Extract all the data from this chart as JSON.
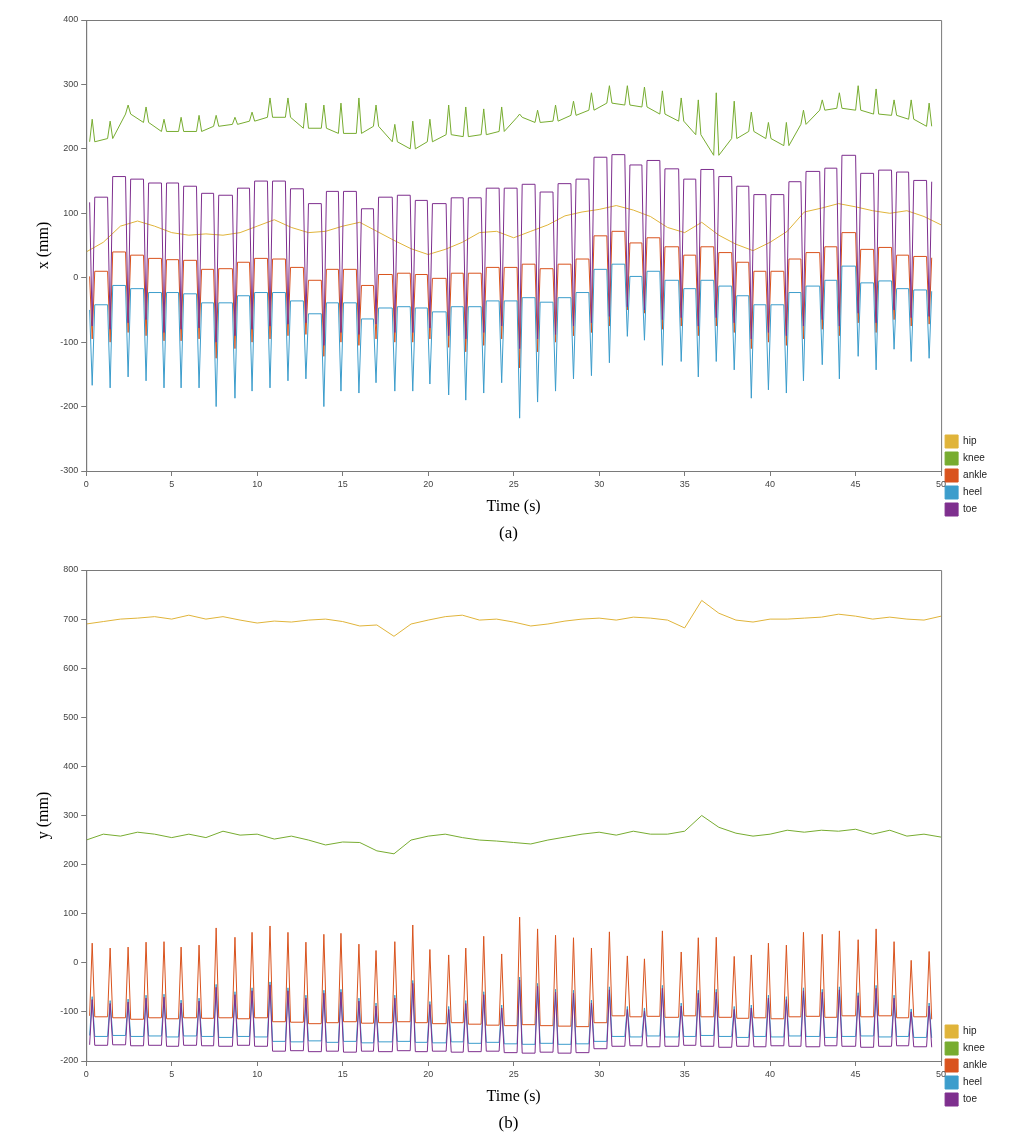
{
  "chart_data": [
    {
      "type": "line",
      "xlabel": "Time (s)",
      "ylabel": "x (mm)",
      "xlim": [
        0,
        50
      ],
      "xticks": [
        0,
        5,
        10,
        15,
        20,
        25,
        30,
        35,
        40,
        45,
        50
      ],
      "ylim": [
        -300,
        400
      ],
      "yticks": [
        -300,
        -200,
        -100,
        0,
        100,
        200,
        300,
        400
      ],
      "grid": false,
      "legend": "bottom right",
      "annotations": [
        "(a)"
      ],
      "x": [
        0.2,
        0.35,
        0.5,
        1.25,
        1.4,
        1.55,
        2.3,
        2.45,
        2.6,
        3.35,
        3.5,
        3.65,
        4.4,
        4.55,
        4.7,
        5.4,
        5.55,
        5.7,
        6.45,
        6.6,
        6.75,
        7.45,
        7.6,
        7.75,
        8.55,
        8.7,
        8.85,
        9.55,
        9.7,
        9.85,
        10.6,
        10.75,
        10.9,
        11.65,
        11.8,
        11.95,
        12.7,
        12.85,
        13,
        13.75,
        13.9,
        14.05,
        14.75,
        14.9,
        15.05,
        15.8,
        15.95,
        16.1,
        16.8,
        16.95,
        17.1,
        17.9,
        18.05,
        18.2,
        18.95,
        19.1,
        19.25,
        19.95,
        20.1,
        20.25,
        21.05,
        21.2,
        21.35,
        22.05,
        22.2,
        22.35,
        23.1,
        23.25,
        23.4,
        24.15,
        24.3,
        24.45,
        25.2,
        25.35,
        25.5,
        26.25,
        26.4,
        26.55,
        27.3,
        27.45,
        27.6,
        28.35,
        28.5,
        28.65,
        29.4,
        29.55,
        29.7,
        30.45,
        30.6,
        30.75,
        31.5,
        31.65,
        31.8,
        32.5,
        32.65,
        32.8,
        33.55,
        33.7,
        33.85,
        34.65,
        34.8,
        34.95,
        35.65,
        35.8,
        35.95,
        36.7,
        36.85,
        37,
        37.75,
        37.9,
        38.05,
        38.75,
        38.9,
        39.05,
        39.75,
        39.9,
        40.05,
        40.8,
        40.95,
        41.1,
        41.8,
        41.95,
        42.1,
        42.9,
        43.05,
        43.2,
        43.9,
        44.05,
        44.2,
        45,
        45.15,
        45.3,
        46.05,
        46.2,
        46.35,
        47.1,
        47.25,
        47.4,
        48.1,
        48.25,
        48.4,
        49.15,
        49.3,
        49.45
      ],
      "series": [
        {
          "name": "hip",
          "color": "#e0b43a",
          "x": [
            0,
            1,
            2,
            3,
            4,
            5,
            6,
            7,
            8,
            9,
            10,
            11,
            12,
            13,
            14,
            15,
            16,
            17,
            18,
            19,
            20,
            21,
            22,
            23,
            24,
            25,
            26,
            27,
            28,
            29,
            30,
            31,
            32,
            33,
            34,
            35,
            36,
            37,
            38,
            39,
            40,
            41,
            42,
            43,
            44,
            45,
            46,
            47,
            48,
            49,
            50
          ],
          "values": [
            40,
            55,
            80,
            88,
            80,
            70,
            66,
            68,
            66,
            70,
            80,
            90,
            78,
            70,
            72,
            80,
            86,
            72,
            58,
            45,
            36,
            44,
            55,
            70,
            72,
            62,
            72,
            82,
            96,
            102,
            106,
            112,
            105,
            95,
            78,
            70,
            86,
            66,
            52,
            42,
            55,
            72,
            102,
            108,
            115,
            110,
            104,
            100,
            104,
            95,
            82
          ]
        },
        {
          "name": "knee",
          "color": "#77ac30",
          "values": [
            211,
            246,
            211,
            216,
            243,
            216,
            254,
            268,
            254,
            241,
            265,
            241,
            227,
            246,
            227,
            227,
            249,
            227,
            227,
            252,
            227,
            235,
            252,
            235,
            238,
            249,
            238,
            243,
            257,
            243,
            249,
            279,
            249,
            249,
            279,
            249,
            232,
            271,
            232,
            232,
            268,
            232,
            224,
            271,
            224,
            224,
            279,
            224,
            235,
            268,
            235,
            211,
            238,
            211,
            200,
            243,
            200,
            211,
            246,
            211,
            222,
            268,
            222,
            219,
            265,
            219,
            222,
            262,
            222,
            227,
            265,
            227,
            249,
            254,
            249,
            241,
            260,
            241,
            243,
            268,
            243,
            252,
            274,
            252,
            260,
            287,
            260,
            271,
            298,
            271,
            268,
            298,
            268,
            265,
            296,
            265,
            254,
            290,
            254,
            243,
            279,
            243,
            222,
            276,
            222,
            190,
            287,
            190,
            216,
            274,
            216,
            227,
            257,
            227,
            216,
            241,
            216,
            205,
            241,
            205,
            238,
            260,
            238,
            260,
            276,
            260,
            263,
            287,
            263,
            260,
            298,
            260,
            254,
            293,
            254,
            252,
            276,
            252,
            246,
            276,
            246,
            235,
            271,
            235
          ]
        },
        {
          "name": "ankle",
          "color": "#d9531e",
          "values": [
            2,
            -95,
            10,
            10,
            -100,
            40,
            40,
            -85,
            35,
            35,
            -90,
            30,
            30,
            -98,
            28,
            28,
            -98,
            27,
            27,
            -95,
            13,
            13,
            -125,
            14,
            14,
            -110,
            24,
            24,
            -100,
            30,
            30,
            -95,
            29,
            29,
            -90,
            16,
            16,
            -88,
            -4,
            -4,
            -122,
            13,
            13,
            -100,
            13,
            13,
            -105,
            -12,
            -12,
            -95,
            5,
            5,
            -100,
            7,
            7,
            -100,
            5,
            5,
            -95,
            -1,
            -1,
            -108,
            7,
            7,
            -115,
            7,
            7,
            -105,
            16,
            16,
            -95,
            16,
            16,
            -140,
            21,
            21,
            -115,
            14,
            14,
            -100,
            21,
            21,
            -90,
            29,
            29,
            -85,
            65,
            65,
            -75,
            72,
            72,
            -50,
            54,
            54,
            -55,
            62,
            62,
            -80,
            48,
            48,
            -75,
            35,
            35,
            -90,
            48,
            48,
            -75,
            39,
            39,
            -85,
            24,
            24,
            -110,
            10,
            10,
            -100,
            10,
            10,
            -105,
            29,
            29,
            -95,
            39,
            39,
            -80,
            48,
            48,
            -90,
            70,
            70,
            -70,
            44,
            44,
            -85,
            47,
            47,
            -65,
            35,
            35,
            -75,
            33,
            33,
            -72,
            31
          ]
        },
        {
          "name": "heel",
          "color": "#3c9dcc",
          "values": [
            -50,
            -167,
            -42,
            -42,
            -171,
            -12,
            -12,
            -154,
            -17,
            -17,
            -160,
            -23,
            -23,
            -171,
            -23,
            -23,
            -171,
            -25,
            -25,
            -171,
            -39,
            -39,
            -200,
            -39,
            -39,
            -187,
            -28,
            -28,
            -176,
            -23,
            -23,
            -171,
            -23,
            -23,
            -160,
            -36,
            -36,
            -157,
            -56,
            -56,
            -200,
            -39,
            -39,
            -176,
            -39,
            -39,
            -179,
            -64,
            -64,
            -163,
            -47,
            -47,
            -176,
            -45,
            -45,
            -176,
            -47,
            -47,
            -165,
            -53,
            -53,
            -182,
            -45,
            -45,
            -190,
            -45,
            -45,
            -179,
            -36,
            -36,
            -163,
            -36,
            -36,
            -218,
            -31,
            -31,
            -193,
            -38,
            -38,
            -176,
            -31,
            -31,
            -157,
            -23,
            -23,
            -152,
            13,
            13,
            -132,
            21,
            21,
            -91,
            2,
            2,
            -97,
            10,
            10,
            -136,
            -4,
            -4,
            -130,
            -17,
            -17,
            -154,
            -4,
            -4,
            -130,
            -13,
            -13,
            -143,
            -28,
            -28,
            -187,
            -42,
            -42,
            -174,
            -42,
            -42,
            -179,
            -23,
            -23,
            -160,
            -13,
            -13,
            -135,
            -4,
            -4,
            -157,
            18,
            18,
            -122,
            -8,
            -8,
            -143,
            -5,
            -5,
            -111,
            -17,
            -17,
            -130,
            -19,
            -19,
            -125,
            -21
          ]
        },
        {
          "name": "toe",
          "color": "#7e2f8e",
          "values": [
            117,
            -75,
            125,
            125,
            -80,
            157,
            157,
            -70,
            153,
            153,
            -65,
            147,
            147,
            -85,
            147,
            147,
            -80,
            142,
            142,
            -78,
            131,
            131,
            -100,
            128,
            128,
            -90,
            139,
            139,
            -80,
            150,
            150,
            -75,
            150,
            150,
            -72,
            138,
            138,
            -70,
            115,
            115,
            -105,
            134,
            134,
            -85,
            134,
            134,
            -88,
            107,
            107,
            -72,
            125,
            125,
            -85,
            128,
            128,
            -85,
            120,
            120,
            -78,
            115,
            115,
            -90,
            124,
            124,
            -95,
            124,
            124,
            -85,
            139,
            139,
            -75,
            139,
            139,
            -110,
            145,
            145,
            -95,
            133,
            133,
            -88,
            146,
            146,
            -75,
            153,
            153,
            -70,
            187,
            187,
            -60,
            191,
            191,
            -45,
            175,
            175,
            -50,
            182,
            182,
            -65,
            169,
            169,
            -62,
            153,
            153,
            -75,
            168,
            168,
            -62,
            157,
            157,
            -70,
            142,
            142,
            -95,
            129,
            129,
            -85,
            129,
            129,
            -90,
            149,
            149,
            -75,
            165,
            165,
            -65,
            170,
            170,
            -75,
            190,
            190,
            -55,
            162,
            162,
            -70,
            167,
            167,
            -50,
            164,
            164,
            -62,
            151,
            151,
            -60,
            149
          ]
        }
      ]
    },
    {
      "type": "line",
      "xlabel": "Time (s)",
      "ylabel": "y (mm)",
      "xlim": [
        0,
        50
      ],
      "xticks": [
        0,
        5,
        10,
        15,
        20,
        25,
        30,
        35,
        40,
        45,
        50
      ],
      "ylim": [
        -200,
        800
      ],
      "yticks": [
        -200,
        -100,
        0,
        100,
        200,
        300,
        400,
        500,
        600,
        700,
        800
      ],
      "grid": false,
      "legend": "bottom right",
      "annotations": [
        "(b)"
      ],
      "x": [
        0.2,
        0.35,
        0.5,
        1.25,
        1.4,
        1.55,
        2.3,
        2.45,
        2.6,
        3.35,
        3.5,
        3.65,
        4.4,
        4.55,
        4.7,
        5.4,
        5.55,
        5.7,
        6.45,
        6.6,
        6.75,
        7.45,
        7.6,
        7.75,
        8.55,
        8.7,
        8.85,
        9.55,
        9.7,
        9.85,
        10.6,
        10.75,
        10.9,
        11.65,
        11.8,
        11.95,
        12.7,
        12.85,
        13,
        13.75,
        13.9,
        14.05,
        14.75,
        14.9,
        15.05,
        15.8,
        15.95,
        16.1,
        16.8,
        16.95,
        17.1,
        17.9,
        18.05,
        18.2,
        18.95,
        19.1,
        19.25,
        19.95,
        20.1,
        20.25,
        21.05,
        21.2,
        21.35,
        22.05,
        22.2,
        22.35,
        23.1,
        23.25,
        23.4,
        24.15,
        24.3,
        24.45,
        25.2,
        25.35,
        25.5,
        26.25,
        26.4,
        26.55,
        27.3,
        27.45,
        27.6,
        28.35,
        28.5,
        28.65,
        29.4,
        29.55,
        29.7,
        30.45,
        30.6,
        30.75,
        31.5,
        31.65,
        31.8,
        32.5,
        32.65,
        32.8,
        33.55,
        33.7,
        33.85,
        34.65,
        34.8,
        34.95,
        35.65,
        35.8,
        35.95,
        36.7,
        36.85,
        37,
        37.75,
        37.9,
        38.05,
        38.75,
        38.9,
        39.05,
        39.75,
        39.9,
        40.05,
        40.8,
        40.95,
        41.1,
        41.8,
        41.95,
        42.1,
        42.9,
        43.05,
        43.2,
        43.9,
        44.05,
        44.2,
        45,
        45.15,
        45.3,
        46.05,
        46.2,
        46.35,
        47.1,
        47.25,
        47.4,
        48.1,
        48.25,
        48.4,
        49.15,
        49.3,
        49.45
      ],
      "series": [
        {
          "name": "hip",
          "color": "#e0b43a",
          "x": [
            0,
            1,
            2,
            3,
            4,
            5,
            6,
            7,
            8,
            9,
            10,
            11,
            12,
            13,
            14,
            15,
            16,
            17,
            18,
            19,
            20,
            21,
            22,
            23,
            24,
            25,
            26,
            27,
            28,
            29,
            30,
            31,
            32,
            33,
            34,
            35,
            36,
            37,
            38,
            39,
            40,
            41,
            42,
            43,
            44,
            45,
            46,
            47,
            48,
            49,
            50
          ],
          "values": [
            690,
            695,
            700,
            702,
            705,
            700,
            708,
            700,
            705,
            698,
            692,
            696,
            694,
            698,
            700,
            695,
            686,
            688,
            665,
            690,
            698,
            705,
            708,
            698,
            700,
            694,
            686,
            690,
            696,
            700,
            702,
            698,
            704,
            702,
            698,
            682,
            738,
            712,
            698,
            694,
            700,
            700,
            702,
            704,
            710,
            706,
            700,
            704,
            700,
            698,
            706
          ]
        },
        {
          "name": "knee",
          "color": "#77ac30",
          "x": [
            0,
            1,
            2,
            3,
            4,
            5,
            6,
            7,
            8,
            9,
            10,
            11,
            12,
            13,
            14,
            15,
            16,
            17,
            18,
            19,
            20,
            21,
            22,
            23,
            24,
            25,
            26,
            27,
            28,
            29,
            30,
            31,
            32,
            33,
            34,
            35,
            36,
            37,
            38,
            39,
            40,
            41,
            42,
            43,
            44,
            45,
            46,
            47,
            48,
            49,
            50
          ],
          "values": [
            250,
            262,
            258,
            266,
            262,
            255,
            262,
            255,
            268,
            260,
            262,
            252,
            258,
            250,
            240,
            246,
            245,
            228,
            222,
            250,
            258,
            262,
            255,
            250,
            248,
            245,
            242,
            250,
            256,
            262,
            266,
            260,
            268,
            262,
            262,
            268,
            300,
            276,
            264,
            258,
            262,
            270,
            266,
            270,
            268,
            272,
            262,
            270,
            258,
            262,
            256
          ]
        },
        {
          "name": "ankle",
          "color": "#d9531e",
          "values": [
            -108,
            40,
            -110,
            -110,
            30,
            -112,
            -112,
            32,
            -115,
            -115,
            42,
            -112,
            -112,
            43,
            -114,
            -114,
            32,
            -112,
            -112,
            36,
            -113,
            -113,
            71,
            -112,
            -112,
            52,
            -114,
            -114,
            62,
            -112,
            -112,
            75,
            -120,
            -120,
            62,
            -121,
            -121,
            42,
            -124,
            -124,
            58,
            -122,
            -122,
            60,
            -120,
            -120,
            38,
            -123,
            -123,
            25,
            -122,
            -122,
            43,
            -120,
            -120,
            77,
            -122,
            -122,
            27,
            -124,
            -124,
            16,
            -122,
            -122,
            30,
            -125,
            -125,
            54,
            -127,
            -127,
            18,
            -128,
            -128,
            93,
            -126,
            -126,
            69,
            -128,
            -128,
            56,
            -129,
            -129,
            51,
            -130,
            -130,
            30,
            -122,
            -122,
            63,
            -108,
            -108,
            14,
            -110,
            -110,
            8,
            -109,
            -109,
            65,
            -111,
            -111,
            22,
            -108,
            -108,
            51,
            -110,
            -110,
            52,
            -111,
            -111,
            13,
            -113,
            -113,
            16,
            -112,
            -112,
            40,
            -114,
            -114,
            36,
            -110,
            -110,
            62,
            -109,
            -109,
            58,
            -111,
            -111,
            65,
            -108,
            -108,
            47,
            -110,
            -110,
            69,
            -108,
            -108,
            43,
            -112,
            -112,
            5,
            -110,
            -110,
            23,
            -115
          ]
        },
        {
          "name": "heel",
          "color": "#3c9dcc",
          "values": [
            -148,
            -69,
            -150,
            -150,
            -77,
            -148,
            -148,
            -74,
            -150,
            -150,
            -66,
            -149,
            -149,
            -64,
            -151,
            -151,
            -76,
            -149,
            -149,
            -72,
            -150,
            -150,
            -44,
            -152,
            -152,
            -59,
            -150,
            -150,
            -51,
            -151,
            -151,
            -39,
            -160,
            -160,
            -51,
            -161,
            -161,
            -66,
            -159,
            -159,
            -56,
            -162,
            -162,
            -54,
            -160,
            -160,
            -72,
            -163,
            -163,
            -82,
            -161,
            -161,
            -66,
            -160,
            -160,
            -36,
            -162,
            -162,
            -79,
            -163,
            -163,
            -89,
            -161,
            -161,
            -77,
            -164,
            -164,
            -59,
            -162,
            -162,
            -86,
            -165,
            -165,
            -29,
            -166,
            -166,
            -42,
            -164,
            -164,
            -54,
            -166,
            -166,
            -56,
            -165,
            -165,
            -76,
            -160,
            -160,
            -49,
            -150,
            -150,
            -89,
            -151,
            -151,
            -92,
            -149,
            -149,
            -46,
            -151,
            -151,
            -82,
            -150,
            -150,
            -56,
            -148,
            -148,
            -54,
            -150,
            -150,
            -89,
            -152,
            -152,
            -86,
            -150,
            -150,
            -66,
            -151,
            -151,
            -69,
            -149,
            -149,
            -51,
            -150,
            -150,
            -54,
            -152,
            -152,
            -49,
            -150,
            -150,
            -61,
            -149,
            -149,
            -46,
            -151,
            -151,
            -66,
            -150,
            -150,
            -94,
            -152,
            -152,
            -82,
            -153
          ]
        },
        {
          "name": "toe",
          "color": "#7e2f8e",
          "values": [
            -167,
            -75,
            -168,
            -168,
            -83,
            -167,
            -167,
            -80,
            -169,
            -169,
            -72,
            -168,
            -168,
            -70,
            -170,
            -170,
            -82,
            -168,
            -168,
            -78,
            -169,
            -169,
            -50,
            -170,
            -170,
            -65,
            -168,
            -168,
            -57,
            -170,
            -170,
            -45,
            -180,
            -180,
            -57,
            -179,
            -179,
            -72,
            -181,
            -181,
            -62,
            -180,
            -180,
            -60,
            -182,
            -182,
            -78,
            -180,
            -180,
            -88,
            -181,
            -181,
            -72,
            -179,
            -179,
            -42,
            -181,
            -181,
            -85,
            -180,
            -180,
            -95,
            -182,
            -182,
            -83,
            -181,
            -181,
            -65,
            -180,
            -180,
            -92,
            -183,
            -183,
            -35,
            -184,
            -184,
            -48,
            -182,
            -182,
            -60,
            -184,
            -184,
            -62,
            -183,
            -183,
            -82,
            -175,
            -175,
            -55,
            -170,
            -170,
            -95,
            -169,
            -169,
            -98,
            -171,
            -171,
            -52,
            -170,
            -170,
            -88,
            -168,
            -168,
            -62,
            -170,
            -170,
            -60,
            -172,
            -172,
            -95,
            -170,
            -170,
            -92,
            -171,
            -171,
            -72,
            -169,
            -169,
            -75,
            -170,
            -170,
            -57,
            -171,
            -171,
            -60,
            -169,
            -169,
            -55,
            -170,
            -170,
            -67,
            -172,
            -172,
            -52,
            -170,
            -170,
            -72,
            -169,
            -169,
            -100,
            -171,
            -171,
            -88,
            -172
          ]
        }
      ]
    }
  ]
}
